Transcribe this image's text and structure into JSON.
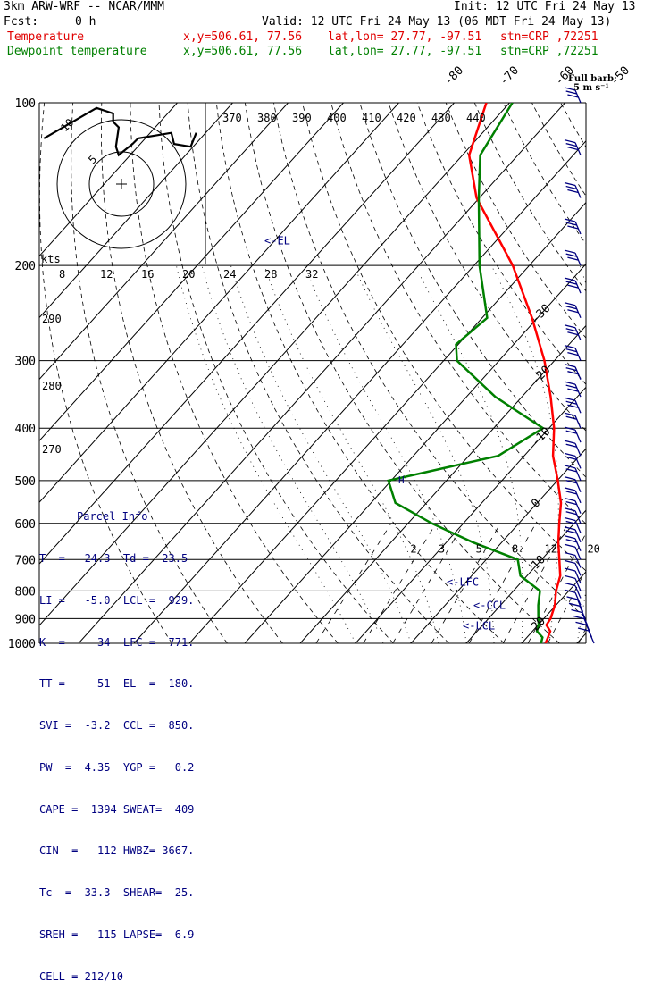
{
  "header": {
    "model": "3km ARW-WRF -- NCAR/MMM",
    "init": "Init: 12 UTC Fri 24 May 13",
    "fcst_label": "Fcst:",
    "fcst_value": "0 h",
    "valid": "Valid: 12 UTC Fri 24 May 13 (06 MDT Fri 24 May 13)",
    "temp_line": {
      "name": "Temperature",
      "xy": "x,y=506.61, 77.56",
      "latlon": "lat,lon= 27.77, -97.51",
      "stn": "stn=CRP ,72251"
    },
    "dew_line": {
      "name": "Dewpoint temperature",
      "xy": "x,y=506.61, 77.56",
      "latlon": "lat,lon= 27.77, -97.51",
      "stn": "stn=CRP ,72251"
    },
    "barb_note_1": "Full barb:",
    "barb_note_2": "5 m s⁻¹"
  },
  "colors": {
    "temperature": "#ff0000",
    "dewpoint": "#008000",
    "barbs": "#000080",
    "info": "#000080"
  },
  "parcel_info": {
    "title": "Parcel Info",
    "rows": [
      "T  =   24.3  Td =  23.5",
      "LI =   -5.0  LCL =  929.",
      "K  =     34  LFC =  771.",
      "TT =     51  EL  =  180.",
      "SVI =  -3.2  CCL =  850.",
      "PW  =  4.35  YGP =   0.2",
      "CAPE =  1394 SWEAT=  409",
      "CIN  =  -112 HWBZ= 3667.",
      "Tc  =  33.3  SHEAR=  25.",
      "SREH =   115 LAPSE=  6.9",
      "CELL = 212/10"
    ]
  },
  "chart_data": {
    "type": "line",
    "title": "",
    "y_axis": "pressure (hPa), log scale",
    "ylim": [
      100,
      1000
    ],
    "pressure_ticks": [
      100,
      200,
      300,
      400,
      500,
      600,
      700,
      800,
      900,
      1000
    ],
    "isotherm_labels": [
      -80,
      -70,
      -60,
      -50,
      -40,
      -30,
      -20,
      -10,
      0,
      10,
      20,
      30,
      40
    ],
    "theta_e_labels": [
      370,
      380,
      390,
      400,
      410,
      420,
      430,
      440
    ],
    "dry_adiabat_labels": [
      290,
      280,
      270
    ],
    "mixing_ratio_labels": [
      2,
      3,
      5,
      8,
      12,
      20
    ],
    "series": [
      {
        "name": "Temperature",
        "points": [
          [
            1000,
            24.3
          ],
          [
            975,
            23.8
          ],
          [
            950,
            23.2
          ],
          [
            925,
            21.5
          ],
          [
            900,
            21.2
          ],
          [
            850,
            19.8
          ],
          [
            800,
            17.7
          ],
          [
            750,
            16.0
          ],
          [
            700,
            13.2
          ],
          [
            650,
            10.2
          ],
          [
            600,
            7.3
          ],
          [
            550,
            4.3
          ],
          [
            500,
            0.1
          ],
          [
            450,
            -4.8
          ],
          [
            400,
            -9.1
          ],
          [
            350,
            -14.8
          ],
          [
            300,
            -21.8
          ],
          [
            250,
            -31.0
          ],
          [
            200,
            -43.0
          ],
          [
            180,
            -49.4
          ],
          [
            150,
            -60.5
          ],
          [
            125,
            -68.8
          ],
          [
            100,
            -74.2
          ]
        ]
      },
      {
        "name": "Dewpoint temperature",
        "points": [
          [
            1000,
            23.5
          ],
          [
            975,
            22.8
          ],
          [
            950,
            20.8
          ],
          [
            925,
            20.1
          ],
          [
            900,
            19.0
          ],
          [
            850,
            16.8
          ],
          [
            800,
            14.8
          ],
          [
            750,
            8.8
          ],
          [
            700,
            5.7
          ],
          [
            650,
            -5.3
          ],
          [
            600,
            -15.7
          ],
          [
            550,
            -25.6
          ],
          [
            500,
            -30.5
          ],
          [
            450,
            -14.7
          ],
          [
            400,
            -11.1
          ],
          [
            350,
            -24.8
          ],
          [
            300,
            -37.6
          ],
          [
            280,
            -40.4
          ],
          [
            250,
            -39.1
          ],
          [
            200,
            -49.0
          ],
          [
            150,
            -60.1
          ],
          [
            125,
            -66.8
          ],
          [
            100,
            -69.5
          ]
        ]
      }
    ],
    "levels": {
      "EL": 180,
      "LFC": 771,
      "CCL": 850,
      "LCL": 929
    },
    "level_labels": {
      "EL": "<-EL",
      "LFC": "<-LFC",
      "CCL": "<-CCL",
      "LCL": "<-LCL"
    },
    "hodograph": {
      "units": "kts",
      "ring_labels": [
        "5",
        "10"
      ],
      "speed_axis": [
        8,
        12,
        16,
        20,
        24,
        28,
        32
      ],
      "marker_h": "H",
      "trace": [
        [
          -56,
          -2
        ],
        [
          -18,
          -24
        ],
        [
          -6,
          -20
        ],
        [
          -6,
          -14
        ],
        [
          -2,
          -10
        ],
        [
          -4,
          4
        ],
        [
          -2,
          10
        ],
        [
          8,
          2
        ],
        [
          12,
          -2
        ],
        [
          36,
          -6
        ],
        [
          38,
          2
        ],
        [
          50,
          4
        ],
        [
          54,
          -6
        ]
      ]
    },
    "wind_barbs": "full barb = 5 m s-1"
  }
}
